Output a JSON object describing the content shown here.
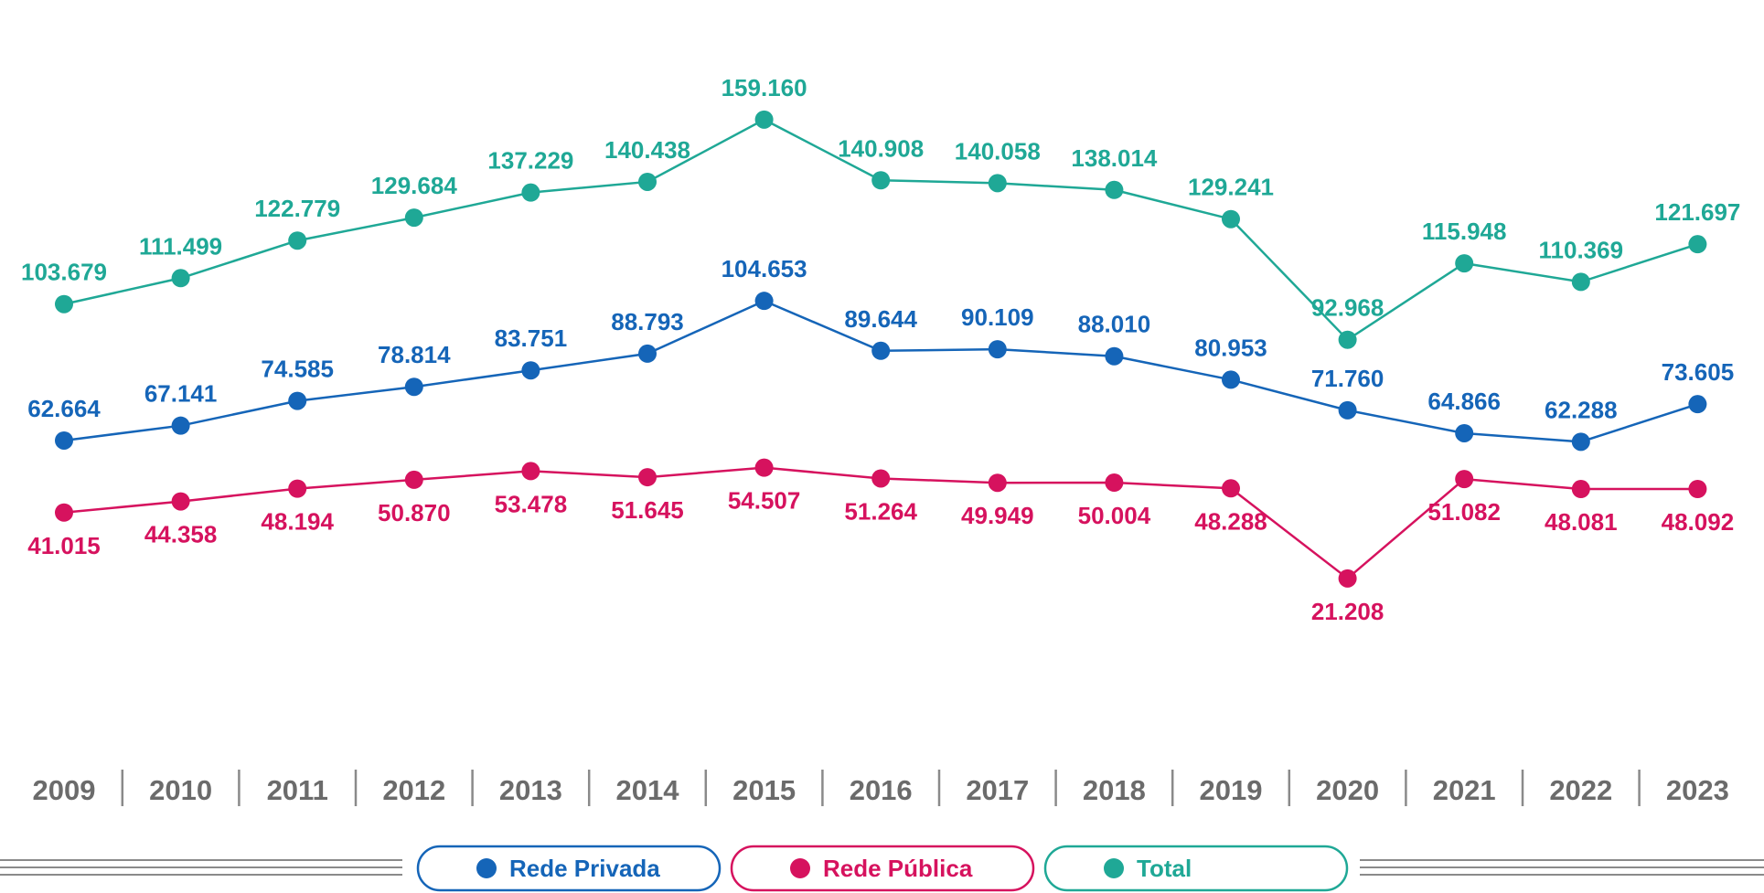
{
  "chart_data": {
    "type": "line",
    "categories": [
      "2009",
      "2010",
      "2011",
      "2012",
      "2013",
      "2014",
      "2015",
      "2016",
      "2017",
      "2018",
      "2019",
      "2020",
      "2021",
      "2022",
      "2023"
    ],
    "ylim": [
      0,
      180000
    ],
    "grid": false,
    "legend_position": "bottom",
    "series": [
      {
        "key": "privada",
        "name": "Rede Privada",
        "color": "#1565b8",
        "values": [
          62664,
          67141,
          74585,
          78814,
          83751,
          88793,
          104653,
          89644,
          90109,
          88010,
          80953,
          71760,
          64866,
          62288,
          73605
        ],
        "labels": [
          "62.664",
          "67.141",
          "74.585",
          "78.814",
          "83.751",
          "88.793",
          "104.653",
          "89.644",
          "90.109",
          "88.010",
          "80.953",
          "71.760",
          "64.866",
          "62.288",
          "73.605"
        ],
        "label_position": "above"
      },
      {
        "key": "publica",
        "name": "Rede Pública",
        "color": "#d6125e",
        "values": [
          41015,
          44358,
          48194,
          50870,
          53478,
          51645,
          54507,
          51264,
          49949,
          50004,
          48288,
          21208,
          51082,
          48081,
          48092
        ],
        "labels": [
          "41.015",
          "44.358",
          "48.194",
          "50.870",
          "53.478",
          "51.645",
          "54.507",
          "51.264",
          "49.949",
          "50.004",
          "48.288",
          "21.208",
          "51.082",
          "48.081",
          "48.092"
        ],
        "label_position": "below"
      },
      {
        "key": "total",
        "name": "Total",
        "color": "#1fa896",
        "values": [
          103679,
          111499,
          122779,
          129684,
          137229,
          140438,
          159160,
          140908,
          140058,
          138014,
          129241,
          92968,
          115948,
          110369,
          121697
        ],
        "labels": [
          "103.679",
          "111.499",
          "122.779",
          "129.684",
          "137.229",
          "140.438",
          "159.160",
          "140.908",
          "140.058",
          "138.014",
          "129.241",
          "92.968",
          "115.948",
          "110.369",
          "121.697"
        ],
        "label_position": "above"
      }
    ]
  },
  "legend": {
    "items": [
      {
        "label": "Rede Privada",
        "color": "#1565b8",
        "icon": "filled-circle-icon"
      },
      {
        "label": "Rede Pública",
        "color": "#d6125e",
        "icon": "filled-circle-icon"
      },
      {
        "label": "Total",
        "color": "#1fa896",
        "icon": "filled-circle-icon"
      }
    ]
  },
  "colors": {
    "axis_text": "#6b6b6b",
    "divider": "#8a8a8a"
  }
}
